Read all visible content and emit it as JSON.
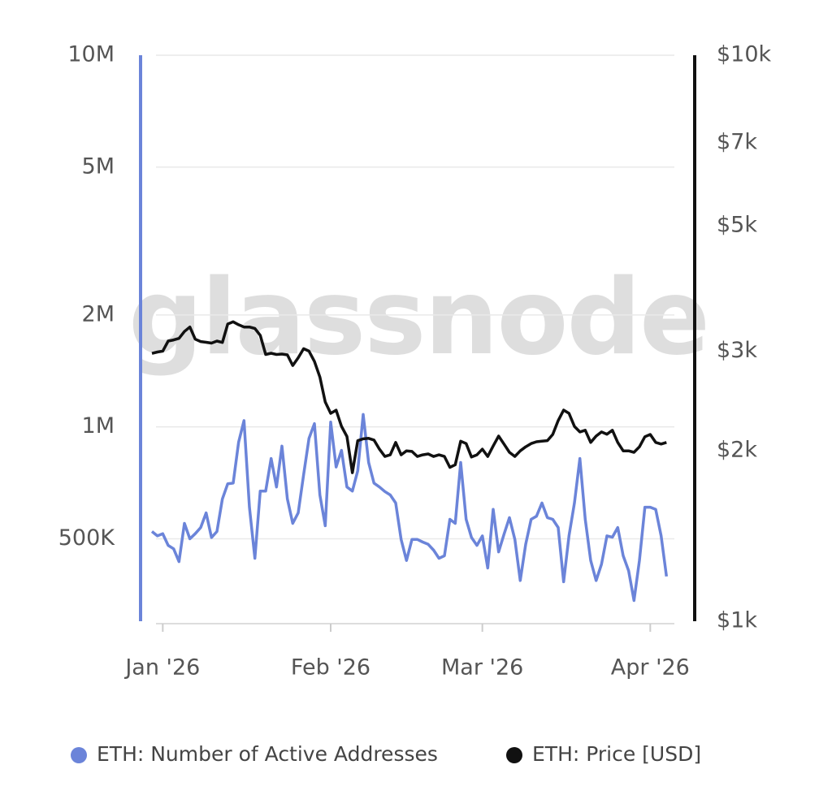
{
  "chart_data": {
    "type": "line",
    "watermark": "glassnode",
    "x": [
      -2,
      -1,
      0,
      1,
      2,
      3,
      4,
      5,
      6,
      7,
      8,
      9,
      10,
      11,
      12,
      13,
      14,
      15,
      16,
      17,
      18,
      19,
      20,
      21,
      22,
      23,
      24,
      25,
      26,
      27,
      28,
      29,
      30,
      31,
      32,
      33,
      34,
      35,
      36,
      37,
      38,
      39,
      40,
      41,
      42,
      43,
      44,
      45,
      46,
      47,
      48,
      49,
      50,
      51,
      52,
      53,
      54,
      55,
      56,
      57,
      58,
      59,
      60,
      61,
      62,
      63,
      64,
      65,
      66,
      67,
      68,
      69,
      70,
      71,
      72,
      73,
      74,
      75,
      76,
      77,
      78,
      79,
      80,
      81,
      82,
      83,
      84,
      85,
      86,
      87,
      88,
      89,
      90,
      91,
      92,
      93
    ],
    "xlim": [
      -2,
      94
    ],
    "xticks": [
      {
        "value": 0,
        "label": "Jan '26"
      },
      {
        "value": 31,
        "label": "Feb '26"
      },
      {
        "value": 59,
        "label": "Mar '26"
      },
      {
        "value": 90,
        "label": "Apr '26"
      }
    ],
    "ylim": [
      300000,
      10000000
    ],
    "ylog": true,
    "yticks": [
      {
        "value": 500000,
        "label": "500K"
      },
      {
        "value": 1000000,
        "label": "1M"
      },
      {
        "value": 2000000,
        "label": "2M"
      },
      {
        "value": 5000000,
        "label": "5M"
      },
      {
        "value": 10000000,
        "label": "10M"
      }
    ],
    "y2lim": [
      1000,
      10000
    ],
    "y2log": true,
    "y2ticks": [
      {
        "value": 1000,
        "label": "$1k"
      },
      {
        "value": 2000,
        "label": "$2k"
      },
      {
        "value": 3000,
        "label": "$3k"
      },
      {
        "value": 5000,
        "label": "$5k"
      },
      {
        "value": 7000,
        "label": "$7k"
      },
      {
        "value": 10000,
        "label": "$10k"
      }
    ],
    "grid": true,
    "series": [
      {
        "name": "ETH: Number of Active Addresses",
        "color": "#6b84d9",
        "values": [
          523000,
          509000,
          516000,
          480000,
          470000,
          434000,
          550000,
          500000,
          516000,
          536000,
          587000,
          504000,
          523000,
          640000,
          703000,
          706000,
          910000,
          1040000,
          608000,
          443000,
          672000,
          672000,
          822000,
          689000,
          888000,
          640000,
          550000,
          587000,
          744000,
          931000,
          1020000,
          656000,
          542000,
          1030000,
          780000,
          865000,
          689000,
          672000,
          762000,
          1080000,
          802000,
          706000,
          689000,
          670000,
          656000,
          624000,
          498000,
          437000,
          498000,
          498000,
          490000,
          483000,
          466000,
          443000,
          450000,
          564000,
          550000,
          802000,
          564000,
          504000,
          480000,
          509000,
          417000,
          600000,
          461000,
          514000,
          570000,
          498000,
          386000,
          483000,
          564000,
          575000,
          624000,
          570000,
          564000,
          536000,
          383000,
          509000,
          624000,
          822000,
          564000,
          437000,
          386000,
          427000,
          509000,
          505000,
          536000,
          450000,
          410000,
          341000,
          437000,
          608000,
          608000,
          600000,
          509000,
          396000
        ]
      },
      {
        "name": "ETH: Price [USD]",
        "color": "#111111",
        "axis": "y2",
        "values": [
          2973,
          2990,
          3000,
          3126,
          3140,
          3160,
          3250,
          3310,
          3150,
          3120,
          3110,
          3100,
          3126,
          3108,
          3350,
          3380,
          3340,
          3310,
          3310,
          3290,
          3200,
          2960,
          2975,
          2960,
          2965,
          2955,
          2830,
          2920,
          3030,
          3000,
          2877,
          2700,
          2440,
          2330,
          2360,
          2210,
          2120,
          1830,
          2084,
          2100,
          2104,
          2090,
          2014,
          1955,
          1968,
          2070,
          1968,
          2000,
          1995,
          1955,
          1968,
          1975,
          1955,
          1968,
          1955,
          1870,
          1890,
          2080,
          2060,
          1950,
          1968,
          2014,
          1955,
          2040,
          2124,
          2056,
          1988,
          1955,
          2000,
          2033,
          2060,
          2075,
          2080,
          2085,
          2138,
          2262,
          2361,
          2330,
          2209,
          2160,
          2175,
          2070,
          2124,
          2160,
          2140,
          2175,
          2070,
          2000,
          2000,
          1988,
          2033,
          2118,
          2138,
          2070,
          2056,
          2070
        ]
      }
    ]
  }
}
